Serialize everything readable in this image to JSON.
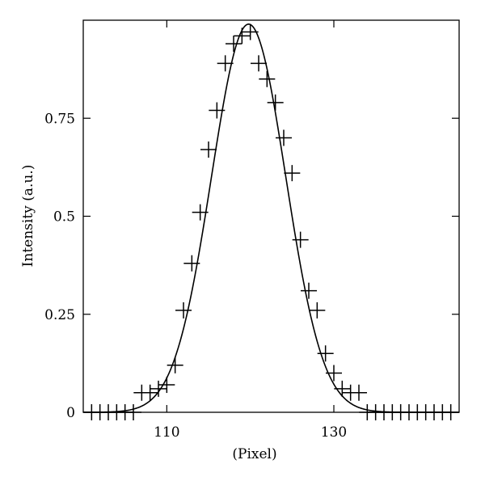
{
  "chart_data": {
    "type": "scatter",
    "xlabel": "(Pixel)",
    "ylabel": "Intensity (a.u.)",
    "xlim": [
      100,
      145
    ],
    "ylim": [
      0,
      1
    ],
    "x_ticks": [
      110,
      130
    ],
    "y_ticks": [
      0,
      0.25,
      0.5,
      0.75
    ],
    "x_tick_labels": [
      "110",
      "130"
    ],
    "y_tick_labels": [
      "0",
      "0.25",
      "0.5",
      "0.75"
    ],
    "grid": false,
    "series": [
      {
        "kind": "markers",
        "marker": "plus",
        "x": [
          101,
          102,
          103,
          104,
          105,
          106,
          107,
          108,
          109,
          110,
          111,
          112,
          113,
          114,
          115,
          116,
          117,
          118,
          119,
          120,
          121,
          122,
          123,
          124,
          125,
          126,
          127,
          128,
          129,
          130,
          131,
          132,
          133,
          134,
          135,
          136,
          137,
          138,
          139,
          140,
          141,
          142,
          143,
          144
        ],
        "y": [
          0.0,
          0.0,
          0.0,
          0.0,
          0.0,
          0.0,
          0.05,
          0.05,
          0.06,
          0.07,
          0.12,
          0.26,
          0.38,
          0.51,
          0.67,
          0.77,
          0.89,
          0.94,
          0.96,
          0.97,
          0.89,
          0.85,
          0.79,
          0.7,
          0.61,
          0.44,
          0.31,
          0.26,
          0.15,
          0.1,
          0.06,
          0.05,
          0.05,
          0.0,
          0.0,
          0.0,
          0.0,
          0.0,
          0.0,
          0.0,
          0.0,
          0.0,
          0.0,
          0.0
        ]
      },
      {
        "kind": "line",
        "fit": "gaussian",
        "amplitude": 0.99,
        "center": 119.8,
        "sigma": 4.45
      }
    ]
  }
}
